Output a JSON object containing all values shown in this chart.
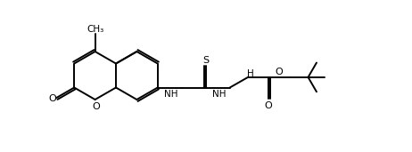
{
  "bg": "#ffffff",
  "lc": "#000000",
  "lw": 1.4,
  "fs": 8.0,
  "figsize": [
    4.62,
    1.72
  ],
  "dpi": 100,
  "BL": 27
}
